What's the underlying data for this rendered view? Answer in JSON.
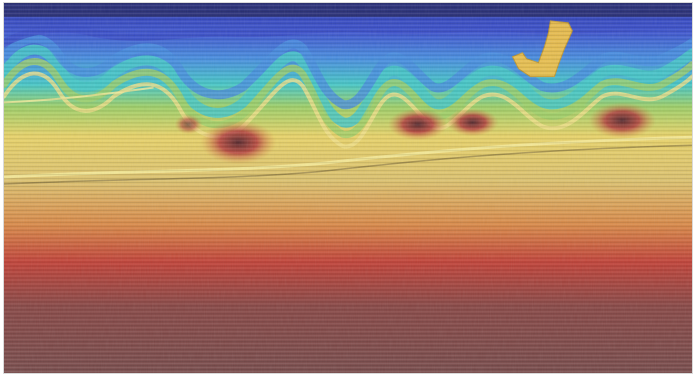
{
  "image": {
    "kind": "seismic-section-with-velocity-overlay",
    "palette": {
      "top_band": "#2f3db0",
      "blue": "#4a63d6",
      "cyan": "#48c8c8",
      "green": "#9fd06a",
      "yellow": "#e8d36a",
      "tan": "#d9c57a",
      "orange": "#d98a4a",
      "red": "#c2443a",
      "deep_red": "#8a2a2a",
      "mauve": "#8a5a5a",
      "bottom": "#7a4e4e",
      "salt_body": "#f0c24a"
    }
  }
}
